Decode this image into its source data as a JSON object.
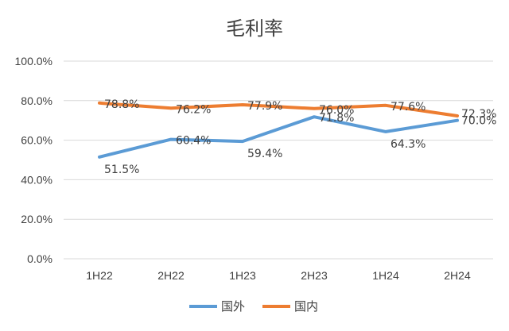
{
  "chart_data": {
    "type": "line",
    "title": "毛利率",
    "categories": [
      "1H22",
      "2H22",
      "1H23",
      "2H23",
      "1H24",
      "2H24"
    ],
    "y_ticks": [
      "0.0%",
      "20.0%",
      "40.0%",
      "60.0%",
      "80.0%",
      "100.0%"
    ],
    "ylim": [
      0,
      100
    ],
    "grid": true,
    "legend_position": "bottom",
    "series": [
      {
        "name": "国外",
        "color": "#5B9BD5",
        "values": [
          51.5,
          60.4,
          59.4,
          71.8,
          64.3,
          70.0
        ],
        "labels": [
          "51.5%",
          "60.4%",
          "59.4%",
          "71.8%",
          "64.3%",
          "70.0%"
        ]
      },
      {
        "name": "国内",
        "color": "#ED7D31",
        "values": [
          78.8,
          76.2,
          77.9,
          76.0,
          77.6,
          72.3
        ],
        "labels": [
          "78.8%",
          "76.2%",
          "77.9%",
          "76.0%",
          "77.6%",
          "72.3%"
        ]
      }
    ]
  }
}
